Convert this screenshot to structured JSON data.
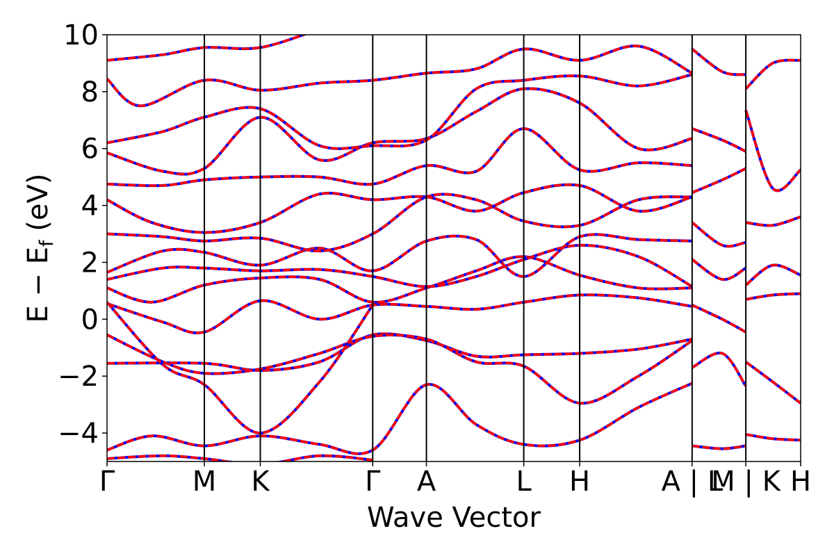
{
  "chart_data": {
    "type": "line",
    "xlabel": "Wave Vector",
    "ylabel": {
      "main": "E − E",
      "sub": "f",
      "unit": " (eV)"
    },
    "ylim": [
      -5,
      10
    ],
    "yticks": [
      -4,
      -2,
      0,
      2,
      4,
      6,
      8,
      10
    ],
    "ytick_labels": [
      "−4",
      "−2",
      "0",
      "2",
      "4",
      "6",
      "8",
      "10"
    ],
    "xlim": [
      0,
      1.24
    ],
    "kpoints": [
      {
        "label": "Γ",
        "x": 0.0
      },
      {
        "label": "M",
        "x": 0.174
      },
      {
        "label": "K",
        "x": 0.274
      },
      {
        "label": "Γ",
        "x": 0.475
      },
      {
        "label": "A",
        "x": 0.571
      },
      {
        "label": "L",
        "x": 0.745
      },
      {
        "label": "H",
        "x": 0.845
      },
      {
        "label": "A | L",
        "x": 1.046
      },
      {
        "label": "M | K",
        "x": 1.142
      },
      {
        "label": "H",
        "x": 1.24
      }
    ],
    "grid": false,
    "legend": "none",
    "colors": {
      "series_a": "#0000ff",
      "series_b": "#ff0000"
    },
    "series": [
      {
        "values": [
          [
            0,
            -4.6
          ],
          [
            0.08,
            -4.1
          ],
          [
            0.174,
            -4.45
          ],
          [
            0.274,
            -4.1
          ],
          [
            0.38,
            -4.4
          ],
          [
            0.475,
            -4.6
          ],
          [
            0.571,
            -2.3
          ],
          [
            0.66,
            -3.7
          ],
          [
            0.745,
            -4.4
          ],
          [
            0.845,
            -4.25
          ],
          [
            0.95,
            -3.1
          ],
          [
            1.046,
            -2.25
          ]
        ]
      },
      {
        "values": [
          [
            0,
            -4.9
          ],
          [
            0.1,
            -4.8
          ],
          [
            0.174,
            -4.9
          ],
          [
            0.274,
            -5.1
          ],
          [
            0.38,
            -4.8
          ],
          [
            0.475,
            -4.95
          ]
        ]
      },
      {
        "values": [
          [
            0,
            -1.55
          ],
          [
            0.174,
            -1.55
          ],
          [
            0.274,
            -1.8
          ],
          [
            0.38,
            -1.5
          ],
          [
            0.475,
            -0.55
          ],
          [
            0.571,
            -0.75
          ],
          [
            0.66,
            -1.3
          ],
          [
            0.745,
            -1.25
          ],
          [
            0.845,
            -1.2
          ],
          [
            0.95,
            -1.05
          ],
          [
            1.046,
            -0.7
          ]
        ]
      },
      {
        "values": [
          [
            0,
            -0.55
          ],
          [
            0.1,
            -1.5
          ],
          [
            0.174,
            -1.9
          ],
          [
            0.274,
            -1.75
          ],
          [
            0.38,
            -1.2
          ],
          [
            0.475,
            -0.6
          ],
          [
            0.571,
            -0.7
          ],
          [
            0.66,
            -1.5
          ],
          [
            0.745,
            -1.65
          ],
          [
            0.845,
            -2.95
          ],
          [
            0.95,
            -2.0
          ],
          [
            1.046,
            -0.75
          ]
        ]
      },
      {
        "values": [
          [
            0,
            0.55
          ],
          [
            0.1,
            -0.1
          ],
          [
            0.174,
            -0.45
          ],
          [
            0.274,
            0.65
          ],
          [
            0.38,
            0.0
          ],
          [
            0.475,
            0.5
          ],
          [
            0.571,
            0.45
          ],
          [
            0.66,
            0.35
          ],
          [
            0.745,
            0.6
          ],
          [
            0.845,
            0.85
          ],
          [
            0.95,
            0.75
          ],
          [
            1.046,
            0.45
          ]
        ]
      },
      {
        "values": [
          [
            0,
            0.6
          ],
          [
            0.1,
            -1.6
          ],
          [
            0.174,
            -2.3
          ],
          [
            0.274,
            -4.0
          ],
          [
            0.38,
            -2.2
          ],
          [
            0.475,
            0.5
          ]
        ]
      },
      {
        "values": [
          [
            0,
            1.1
          ],
          [
            0.08,
            0.6
          ],
          [
            0.174,
            1.2
          ],
          [
            0.274,
            1.45
          ],
          [
            0.38,
            1.4
          ],
          [
            0.475,
            0.6
          ],
          [
            0.571,
            1.1
          ],
          [
            0.66,
            1.7
          ],
          [
            0.745,
            2.2
          ],
          [
            0.845,
            1.55
          ],
          [
            0.95,
            1.1
          ],
          [
            1.046,
            1.1
          ]
        ]
      },
      {
        "values": [
          [
            0,
            1.4
          ],
          [
            0.1,
            1.8
          ],
          [
            0.174,
            1.8
          ],
          [
            0.274,
            1.7
          ],
          [
            0.38,
            1.75
          ],
          [
            0.475,
            1.5
          ],
          [
            0.571,
            1.15
          ],
          [
            0.66,
            1.5
          ],
          [
            0.745,
            2.1
          ],
          [
            0.845,
            2.6
          ],
          [
            0.95,
            2.2
          ],
          [
            1.046,
            1.15
          ]
        ]
      },
      {
        "values": [
          [
            0,
            1.65
          ],
          [
            0.1,
            2.4
          ],
          [
            0.174,
            2.35
          ],
          [
            0.274,
            1.9
          ],
          [
            0.38,
            2.5
          ],
          [
            0.475,
            1.7
          ],
          [
            0.571,
            2.75
          ],
          [
            0.66,
            2.8
          ],
          [
            0.745,
            1.5
          ],
          [
            0.845,
            2.9
          ],
          [
            0.95,
            2.8
          ],
          [
            1.046,
            2.75
          ]
        ]
      },
      {
        "values": [
          [
            0,
            3.0
          ],
          [
            0.1,
            2.9
          ],
          [
            0.174,
            2.75
          ],
          [
            0.274,
            2.85
          ],
          [
            0.38,
            2.4
          ],
          [
            0.475,
            3.0
          ],
          [
            0.571,
            4.3
          ],
          [
            0.66,
            4.2
          ],
          [
            0.745,
            3.45
          ],
          [
            0.845,
            3.3
          ],
          [
            0.95,
            4.2
          ],
          [
            1.046,
            4.3
          ]
        ]
      },
      {
        "values": [
          [
            0,
            4.2
          ],
          [
            0.08,
            3.4
          ],
          [
            0.174,
            3.05
          ],
          [
            0.274,
            3.4
          ],
          [
            0.38,
            4.4
          ],
          [
            0.475,
            4.2
          ],
          [
            0.571,
            4.3
          ],
          [
            0.66,
            3.8
          ],
          [
            0.745,
            4.45
          ],
          [
            0.845,
            4.7
          ],
          [
            0.95,
            3.8
          ],
          [
            1.046,
            4.3
          ]
        ]
      },
      {
        "values": [
          [
            0,
            4.75
          ],
          [
            0.1,
            4.7
          ],
          [
            0.174,
            4.9
          ],
          [
            0.274,
            5.0
          ],
          [
            0.38,
            5.0
          ],
          [
            0.475,
            4.75
          ],
          [
            0.571,
            5.4
          ],
          [
            0.66,
            5.2
          ],
          [
            0.745,
            6.7
          ],
          [
            0.845,
            5.25
          ],
          [
            0.95,
            5.5
          ],
          [
            1.046,
            5.4
          ]
        ]
      },
      {
        "values": [
          [
            0,
            5.85
          ],
          [
            0.1,
            5.2
          ],
          [
            0.174,
            5.3
          ],
          [
            0.274,
            7.1
          ],
          [
            0.38,
            5.6
          ],
          [
            0.475,
            6.2
          ],
          [
            0.571,
            6.35
          ],
          [
            0.66,
            7.3
          ],
          [
            0.745,
            8.1
          ],
          [
            0.845,
            7.6
          ],
          [
            0.95,
            6.0
          ],
          [
            1.046,
            6.35
          ]
        ]
      },
      {
        "values": [
          [
            0,
            6.2
          ],
          [
            0.1,
            6.6
          ],
          [
            0.174,
            7.1
          ],
          [
            0.274,
            7.4
          ],
          [
            0.38,
            6.1
          ],
          [
            0.475,
            6.1
          ],
          [
            0.571,
            6.3
          ],
          [
            0.66,
            8.1
          ],
          [
            0.745,
            8.4
          ],
          [
            0.845,
            8.55
          ],
          [
            0.95,
            8.2
          ],
          [
            1.046,
            8.6
          ]
        ]
      },
      {
        "values": [
          [
            0,
            8.45
          ],
          [
            0.06,
            7.5
          ],
          [
            0.174,
            8.4
          ],
          [
            0.274,
            8.05
          ],
          [
            0.38,
            8.3
          ],
          [
            0.475,
            8.4
          ],
          [
            0.571,
            8.65
          ],
          [
            0.66,
            8.8
          ],
          [
            0.745,
            9.5
          ],
          [
            0.845,
            9.1
          ],
          [
            0.95,
            9.6
          ],
          [
            1.046,
            8.65
          ]
        ]
      },
      {
        "values": [
          [
            0,
            9.1
          ],
          [
            0.1,
            9.3
          ],
          [
            0.174,
            9.55
          ],
          [
            0.274,
            9.55
          ],
          [
            0.38,
            10.2
          ]
        ]
      },
      {
        "values": [
          [
            1.046,
            -4.45
          ],
          [
            1.1,
            -4.55
          ],
          [
            1.142,
            -4.45
          ]
        ]
      },
      {
        "values": [
          [
            1.046,
            -1.7
          ],
          [
            1.1,
            -1.2
          ],
          [
            1.142,
            -2.35
          ]
        ]
      },
      {
        "values": [
          [
            1.046,
            0.5
          ],
          [
            1.1,
            0.0
          ],
          [
            1.142,
            -0.45
          ]
        ]
      },
      {
        "values": [
          [
            1.046,
            2.1
          ],
          [
            1.1,
            1.4
          ],
          [
            1.142,
            1.8
          ]
        ]
      },
      {
        "values": [
          [
            1.046,
            3.4
          ],
          [
            1.1,
            2.6
          ],
          [
            1.142,
            2.7
          ]
        ]
      },
      {
        "values": [
          [
            1.046,
            4.45
          ],
          [
            1.1,
            4.9
          ],
          [
            1.142,
            5.3
          ]
        ]
      },
      {
        "values": [
          [
            1.046,
            6.7
          ],
          [
            1.1,
            6.3
          ],
          [
            1.142,
            5.9
          ]
        ]
      },
      {
        "values": [
          [
            1.046,
            9.5
          ],
          [
            1.1,
            8.7
          ],
          [
            1.142,
            8.6
          ]
        ]
      },
      {
        "values": [
          [
            1.142,
            -4.05
          ],
          [
            1.19,
            -4.2
          ],
          [
            1.24,
            -4.25
          ]
        ]
      },
      {
        "values": [
          [
            1.142,
            -1.5
          ],
          [
            1.19,
            -2.2
          ],
          [
            1.24,
            -2.95
          ]
        ]
      },
      {
        "values": [
          [
            1.142,
            0.7
          ],
          [
            1.19,
            0.85
          ],
          [
            1.24,
            0.9
          ]
        ]
      },
      {
        "values": [
          [
            1.142,
            1.2
          ],
          [
            1.19,
            1.9
          ],
          [
            1.24,
            1.55
          ]
        ]
      },
      {
        "values": [
          [
            1.142,
            3.4
          ],
          [
            1.19,
            3.3
          ],
          [
            1.24,
            3.6
          ]
        ]
      },
      {
        "values": [
          [
            1.142,
            7.35
          ],
          [
            1.19,
            4.6
          ],
          [
            1.24,
            5.25
          ]
        ]
      },
      {
        "values": [
          [
            1.142,
            8.1
          ],
          [
            1.19,
            9.0
          ],
          [
            1.24,
            9.1
          ]
        ]
      }
    ]
  }
}
